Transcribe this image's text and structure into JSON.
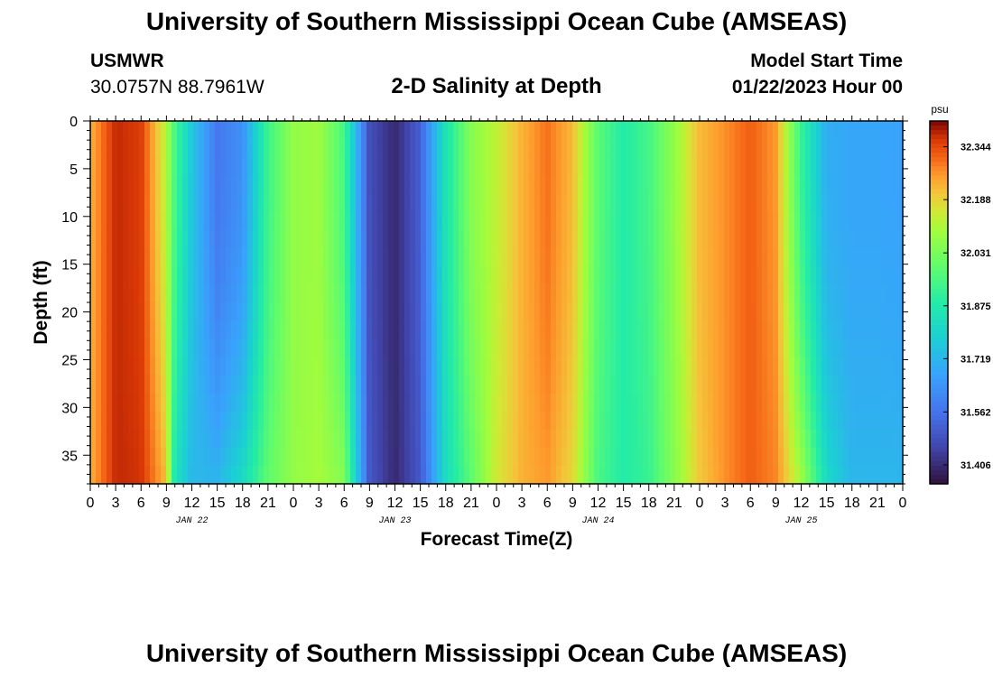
{
  "header": {
    "title": "University of Southern Mississippi Ocean Cube (AMSEAS)",
    "station": "USMWR",
    "coords": "30.0757N  88.7961W",
    "subtitle": "2-D Salinity at Depth",
    "model_start_label": "Model Start Time",
    "model_start_value": "01/22/2023 Hour 00",
    "footer_title": "University of Southern Mississippi Ocean Cube (AMSEAS)"
  },
  "chart_data": {
    "type": "heatmap",
    "title": "2-D Salinity at Depth",
    "xlabel": "Forecast Time(Z)",
    "ylabel": "Depth (ft)",
    "x_tick_labels": [
      "0",
      "3",
      "6",
      "9",
      "12",
      "15",
      "18",
      "21",
      "0",
      "3",
      "6",
      "9",
      "12",
      "15",
      "18",
      "21",
      "0",
      "3",
      "6",
      "9",
      "12",
      "15",
      "18",
      "21",
      "0",
      "3",
      "6",
      "9",
      "12",
      "15",
      "18",
      "21",
      "0"
    ],
    "x_hours_range": [
      0,
      96
    ],
    "date_labels": [
      {
        "label": "JAN 22",
        "hour": 12
      },
      {
        "label": "JAN 23",
        "hour": 36
      },
      {
        "label": "JAN 24",
        "hour": 60
      },
      {
        "label": "JAN 25",
        "hour": 84
      }
    ],
    "y_tick_labels": [
      "0",
      "5",
      "10",
      "15",
      "20",
      "25",
      "30",
      "35"
    ],
    "y_ticks": [
      0,
      5,
      10,
      15,
      20,
      25,
      30,
      35
    ],
    "ylim": [
      0,
      38
    ],
    "colorbar": {
      "unit": "psu",
      "tick_labels": [
        "32.344",
        "32.188",
        "32.031",
        "31.875",
        "31.719",
        "31.562",
        "31.406"
      ],
      "min": 31.35,
      "max": 32.42
    },
    "salinity_profile_hours": [
      0,
      3,
      6,
      9,
      10,
      12,
      15,
      18,
      21,
      24,
      27,
      30,
      33,
      36,
      39,
      42,
      45,
      48,
      51,
      54,
      57,
      60,
      63,
      66,
      69,
      72,
      75,
      78,
      81,
      84,
      87,
      90,
      93,
      96
    ],
    "salinity_surface": [
      32.23,
      32.38,
      32.36,
      32.12,
      31.95,
      31.76,
      31.57,
      31.63,
      31.93,
      32.07,
      32.09,
      31.95,
      31.48,
      31.4,
      31.52,
      31.85,
      32.05,
      32.13,
      32.23,
      32.3,
      32.22,
      31.98,
      31.88,
      31.94,
      32.07,
      32.22,
      32.27,
      32.32,
      32.26,
      31.92,
      31.7,
      31.68,
      31.68,
      31.67
    ],
    "salinity_bottom": [
      32.23,
      32.38,
      32.37,
      32.22,
      31.85,
      31.72,
      31.72,
      31.82,
      31.99,
      32.07,
      32.1,
      32.05,
      31.5,
      31.4,
      31.5,
      31.82,
      31.98,
      32.15,
      32.23,
      32.26,
      32.18,
      31.95,
      31.88,
      31.92,
      32.05,
      32.2,
      32.27,
      32.32,
      32.28,
      32.1,
      31.82,
      31.72,
      31.72,
      31.72
    ]
  },
  "colors": {
    "background": "#ffffff",
    "axis": "#000000"
  }
}
